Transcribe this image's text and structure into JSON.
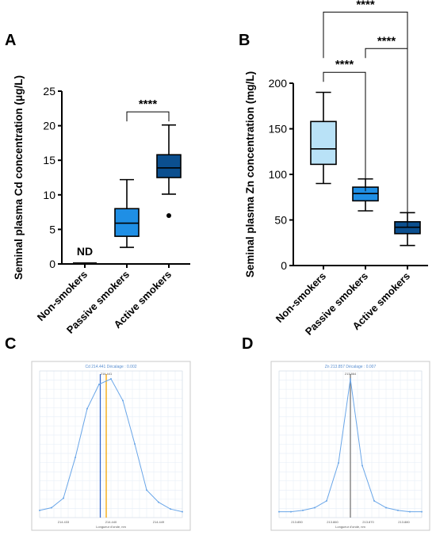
{
  "chart_data": [
    {
      "panel": "A",
      "type": "box",
      "ylabel": "Seminal plasma Cd concentration (μg/L)",
      "ylim": [
        0,
        25
      ],
      "yticks": [
        0,
        5,
        10,
        15,
        20,
        25
      ],
      "categories": [
        "Non-smokers",
        "Passive smokers",
        "Active smokers"
      ],
      "boxes": [
        {
          "name": "Non-smokers",
          "nd": true,
          "nd_label": "ND",
          "min": 0,
          "q1": 0,
          "median": 0,
          "q3": 0,
          "max": 0,
          "color": "#b9e2f7",
          "outliers": []
        },
        {
          "name": "Passive smokers",
          "min": 2.4,
          "q1": 4.0,
          "median": 5.9,
          "q3": 8.0,
          "max": 12.2,
          "color": "#1f8fe5",
          "outliers": []
        },
        {
          "name": "Active smokers",
          "min": 10.1,
          "q1": 12.5,
          "median": 13.9,
          "q3": 15.8,
          "max": 20.1,
          "color": "#0b4f8f",
          "outliers": [
            7.0
          ]
        }
      ],
      "significance": [
        {
          "from": "Passive smokers",
          "to": "Active smokers",
          "label": "****",
          "y": 22.0
        }
      ]
    },
    {
      "panel": "B",
      "type": "box",
      "ylabel": "Seminal plasma Zn concentration (mg/L)",
      "ylim": [
        0,
        200
      ],
      "yticks": [
        0,
        50,
        100,
        150,
        200
      ],
      "categories": [
        "Non-smokers",
        "Passive smokers",
        "Active smokers"
      ],
      "boxes": [
        {
          "name": "Non-smokers",
          "min": 90,
          "q1": 111,
          "median": 128,
          "q3": 158,
          "max": 190,
          "color": "#b9e2f7",
          "outliers": []
        },
        {
          "name": "Passive smokers",
          "min": 60,
          "q1": 71,
          "median": 79,
          "q3": 86,
          "max": 95,
          "color": "#1f8fe5",
          "outliers": []
        },
        {
          "name": "Active smokers",
          "min": 22,
          "q1": 35,
          "median": 42,
          "q3": 48,
          "max": 58,
          "color": "#0b4f8f",
          "outliers": []
        }
      ],
      "significance": [
        {
          "from": "Non-smokers",
          "to": "Passive smokers",
          "label": "****",
          "y": 212
        },
        {
          "from": "Passive smokers",
          "to": "Active smokers",
          "label": "****",
          "y": 238
        },
        {
          "from": "Non-smokers",
          "to": "Active smokers",
          "label": "****",
          "y": 278
        }
      ]
    },
    {
      "panel": "C",
      "type": "line",
      "title": "Cd 214.441 Décalage : 0.002",
      "peak_label": "214.441",
      "xlabel": "Longueur d'onde, nm",
      "x_ticks": [
        "214.433",
        "214.440",
        "214.449"
      ],
      "x": [
        0,
        1,
        2,
        3,
        4,
        5,
        6,
        7,
        8,
        9,
        10,
        11,
        12
      ],
      "y": [
        0.03,
        0.05,
        0.12,
        0.42,
        0.78,
        0.96,
        1.0,
        0.84,
        0.52,
        0.18,
        0.09,
        0.04,
        0.02
      ],
      "markers": [
        {
          "x": 5.1,
          "color": "#3366cc"
        },
        {
          "x": 5.6,
          "color": "#f5a300"
        }
      ]
    },
    {
      "panel": "D",
      "type": "line",
      "title": "Zn 213.857 Décalage : 0.007",
      "peak_label": "213.864",
      "xlabel": "Longueur d'onde, nm",
      "x_ticks": [
        "213.850",
        "213.860",
        "213.870",
        "213.880"
      ],
      "x": [
        0,
        1,
        2,
        3,
        4,
        5,
        6,
        7,
        8,
        9,
        10,
        11,
        12
      ],
      "y": [
        0.02,
        0.02,
        0.03,
        0.05,
        0.1,
        0.38,
        1.0,
        0.36,
        0.1,
        0.05,
        0.03,
        0.02,
        0.02
      ],
      "markers": [
        {
          "x": 6.0,
          "color": "#777777"
        }
      ]
    }
  ]
}
